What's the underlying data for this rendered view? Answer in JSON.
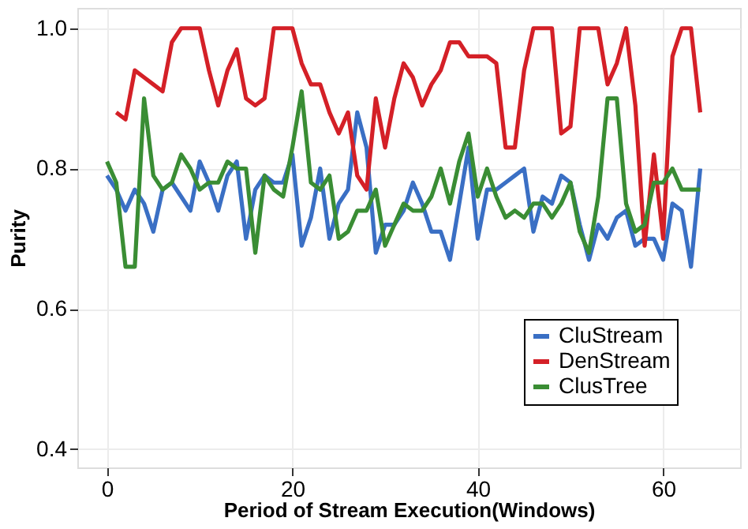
{
  "chart_data": {
    "type": "line",
    "xlabel": "Period of Stream Execution(Windows)",
    "ylabel": "Purity",
    "xlim": [
      -3.2,
      68.3
    ],
    "ylim": [
      0.374,
      1.029
    ],
    "xticks": [
      0,
      20,
      40,
      60
    ],
    "yticks": [
      0.4,
      0.6,
      0.8,
      {
        "value": 1,
        "label": "1.0"
      }
    ],
    "grid": true,
    "legend": "bottom right",
    "line_style": "solid",
    "series": [
      {
        "name": "CluStream",
        "color": "#3a6fc4",
        "x": [
          0,
          1,
          2,
          3,
          4,
          5,
          6,
          7,
          8,
          9,
          10,
          11,
          12,
          13,
          14,
          15,
          16,
          17,
          18,
          19,
          20,
          21,
          22,
          23,
          24,
          25,
          26,
          27,
          28,
          29,
          30,
          31,
          32,
          33,
          34,
          35,
          36,
          37,
          38,
          39,
          40,
          41,
          42,
          43,
          44,
          45,
          46,
          47,
          48,
          49,
          50,
          51,
          52,
          53,
          54,
          55,
          56,
          57,
          58,
          59,
          60,
          61,
          62,
          63,
          64
        ],
        "values": [
          0.79,
          0.77,
          0.74,
          0.77,
          0.75,
          0.71,
          0.77,
          0.78,
          0.76,
          0.74,
          0.81,
          0.78,
          0.74,
          0.79,
          0.81,
          0.7,
          0.77,
          0.79,
          0.78,
          0.78,
          0.82,
          0.69,
          0.73,
          0.8,
          0.7,
          0.75,
          0.77,
          0.88,
          0.83,
          0.68,
          0.72,
          0.72,
          0.74,
          0.78,
          0.75,
          0.71,
          0.71,
          0.67,
          0.75,
          0.83,
          0.7,
          0.77,
          0.77,
          0.78,
          0.79,
          0.8,
          0.71,
          0.76,
          0.75,
          0.79,
          0.78,
          0.72,
          0.67,
          0.72,
          0.7,
          0.73,
          0.74,
          0.69,
          0.7,
          0.7,
          0.67,
          0.75,
          0.74,
          0.66,
          0.8
        ]
      },
      {
        "name": "DenStream",
        "color": "#d42027",
        "x": [
          1,
          2,
          3,
          4,
          5,
          6,
          7,
          8,
          9,
          10,
          11,
          12,
          13,
          14,
          15,
          16,
          17,
          18,
          19,
          20,
          21,
          22,
          23,
          24,
          25,
          26,
          27,
          28,
          29,
          30,
          31,
          32,
          33,
          34,
          35,
          36,
          37,
          38,
          39,
          40,
          41,
          42,
          43,
          44,
          45,
          46,
          47,
          48,
          49,
          50,
          51,
          52,
          53,
          54,
          55,
          56,
          57,
          58,
          59,
          60,
          61,
          62,
          63,
          64
        ],
        "values": [
          0.88,
          0.87,
          0.94,
          0.93,
          0.92,
          0.91,
          0.98,
          1.0,
          1.0,
          1.0,
          0.94,
          0.89,
          0.94,
          0.97,
          0.9,
          0.89,
          0.9,
          1.0,
          1.0,
          1.0,
          0.95,
          0.92,
          0.92,
          0.88,
          0.85,
          0.88,
          0.79,
          0.77,
          0.9,
          0.83,
          0.9,
          0.95,
          0.93,
          0.89,
          0.92,
          0.94,
          0.98,
          0.98,
          0.96,
          0.96,
          0.96,
          0.95,
          0.83,
          0.83,
          0.94,
          1.0,
          1.0,
          1.0,
          0.85,
          0.86,
          1.0,
          1.0,
          1.0,
          0.92,
          0.95,
          1.0,
          0.89,
          0.69,
          0.82,
          0.7,
          0.96,
          1.0,
          1.0,
          0.88
        ]
      },
      {
        "name": "ClusTree",
        "color": "#3a8d34",
        "x": [
          0,
          1,
          2,
          3,
          4,
          5,
          6,
          7,
          8,
          9,
          10,
          11,
          12,
          13,
          14,
          15,
          16,
          17,
          18,
          19,
          20,
          21,
          22,
          23,
          24,
          25,
          26,
          27,
          28,
          29,
          30,
          31,
          32,
          33,
          34,
          35,
          36,
          37,
          38,
          39,
          40,
          41,
          42,
          43,
          44,
          45,
          46,
          47,
          48,
          49,
          50,
          51,
          52,
          53,
          54,
          55,
          56,
          57,
          58,
          59,
          60,
          61,
          62,
          63,
          64
        ],
        "values": [
          0.81,
          0.78,
          0.66,
          0.66,
          0.9,
          0.79,
          0.77,
          0.78,
          0.82,
          0.8,
          0.77,
          0.78,
          0.78,
          0.81,
          0.8,
          0.8,
          0.68,
          0.79,
          0.77,
          0.76,
          0.83,
          0.91,
          0.78,
          0.77,
          0.79,
          0.7,
          0.71,
          0.74,
          0.74,
          0.77,
          0.69,
          0.72,
          0.75,
          0.74,
          0.74,
          0.76,
          0.8,
          0.75,
          0.81,
          0.85,
          0.76,
          0.8,
          0.76,
          0.73,
          0.74,
          0.73,
          0.75,
          0.75,
          0.73,
          0.75,
          0.78,
          0.71,
          0.68,
          0.76,
          0.9,
          0.9,
          0.75,
          0.71,
          0.72,
          0.78,
          0.78,
          0.8,
          0.77,
          0.77,
          0.77
        ]
      }
    ]
  }
}
